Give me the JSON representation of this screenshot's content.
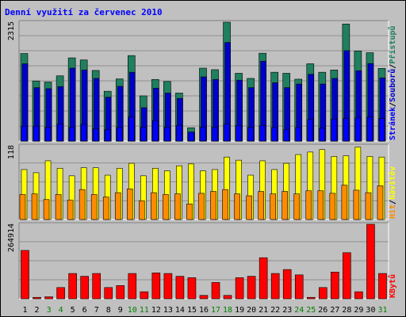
{
  "chart_data": {
    "title": "Denní využití za červenec 2010",
    "type": "bar",
    "categories": [
      "1",
      "2",
      "3",
      "4",
      "5",
      "6",
      "7",
      "8",
      "9",
      "10",
      "11",
      "12",
      "13",
      "14",
      "15",
      "16",
      "17",
      "18",
      "19",
      "20",
      "21",
      "22",
      "23",
      "24",
      "25",
      "26",
      "27",
      "28",
      "29",
      "30",
      "31"
    ],
    "weekend_days": [
      "3",
      "4",
      "10",
      "11",
      "17",
      "18",
      "24",
      "25",
      "31"
    ],
    "colors": {
      "frame_bg": "#c0c0c0",
      "plot_bg": "#c0c0c0",
      "title": "#0000ff",
      "stranek": "#0000ff",
      "souboru": "#0000cc",
      "pristupu": "#1f7f5f",
      "hit": "#ff8c00",
      "navstev": "#ffff00",
      "kbytu": "#ff0000",
      "weekend_label": "#008000",
      "weekday_label": "#000000"
    },
    "panels": [
      {
        "id": "top",
        "ymax_label": "2315",
        "ylim": [
          0,
          2315
        ],
        "right_label": "Stránek / Souborů / Přístupů",
        "right_label_parts": [
          "Stránek",
          "/",
          "Souborů",
          "/",
          "Přístupů"
        ],
        "series": [
          {
            "name": "Přístupů",
            "values": [
              1705,
              1170,
              1150,
              1270,
              1620,
              1580,
              1375,
              970,
              1210,
              1665,
              880,
              1200,
              1160,
              935,
              260,
              1420,
              1390,
              2315,
              1320,
              1220,
              1710,
              1340,
              1320,
              1205,
              1505,
              1340,
              1385,
              2280,
              1755,
              1720,
              1415
            ]
          },
          {
            "name": "Souborů",
            "values": [
              1505,
              1040,
              1020,
              1060,
              1420,
              1385,
              1220,
              855,
              1065,
              1340,
              650,
              1030,
              935,
              830,
              175,
              1250,
              1200,
              1920,
              1185,
              1040,
              1555,
              1135,
              1040,
              1110,
              1300,
              1110,
              1220,
              1760,
              1370,
              1510,
              1230
            ]
          },
          {
            "name": "Stránek",
            "values": [
              290,
              290,
              270,
              330,
              270,
              330,
              240,
              220,
              265,
              470,
              270,
              400,
              270,
              305,
              175,
              270,
              270,
              330,
              305,
              270,
              300,
              265,
              220,
              265,
              420,
              250,
              430,
              440,
              450,
              465,
              440
            ]
          }
        ]
      },
      {
        "id": "middle",
        "ymax_label": "118",
        "ylim": [
          0,
          118
        ],
        "right_label": "Hit / Návštěv",
        "right_label_parts": [
          "Hit",
          "/",
          "Návštěv"
        ],
        "series": [
          {
            "name": "Návštěv",
            "values": [
              80,
              75,
              94,
              82,
              70,
              83,
              83,
              71,
              82,
              90,
              70,
              82,
              78,
              86,
              89,
              78,
              80,
              100,
              95,
              71,
              94,
              80,
              90,
              104,
              108,
              112,
              101,
              102,
              116,
              101,
              100
            ]
          },
          {
            "name": "Hit",
            "values": [
              40,
              41,
              32,
              40,
              31,
              48,
              40,
              36,
              43,
              49,
              30,
              43,
              40,
              41,
              25,
              42,
              45,
              48,
              41,
              38,
              45,
              41,
              45,
              41,
              46,
              46,
              42,
              55,
              47,
              43,
              54
            ]
          }
        ]
      },
      {
        "id": "bottom",
        "ymax_label": "264914",
        "ylim": [
          0,
          264914
        ],
        "right_label": "KBytů",
        "right_label_parts": [
          "KBytů"
        ],
        "series": [
          {
            "name": "KBytů",
            "values": [
              172000,
              5000,
              7000,
              40000,
              90000,
              80000,
              90000,
              40000,
              47000,
              90000,
              25000,
              92000,
              90000,
              80000,
              75000,
              12000,
              58000,
              12000,
              75000,
              80000,
              146000,
              90000,
              104000,
              85000,
              5000,
              40000,
              95000,
              164000,
              25000,
              264914,
              90000
            ]
          }
        ]
      }
    ]
  }
}
